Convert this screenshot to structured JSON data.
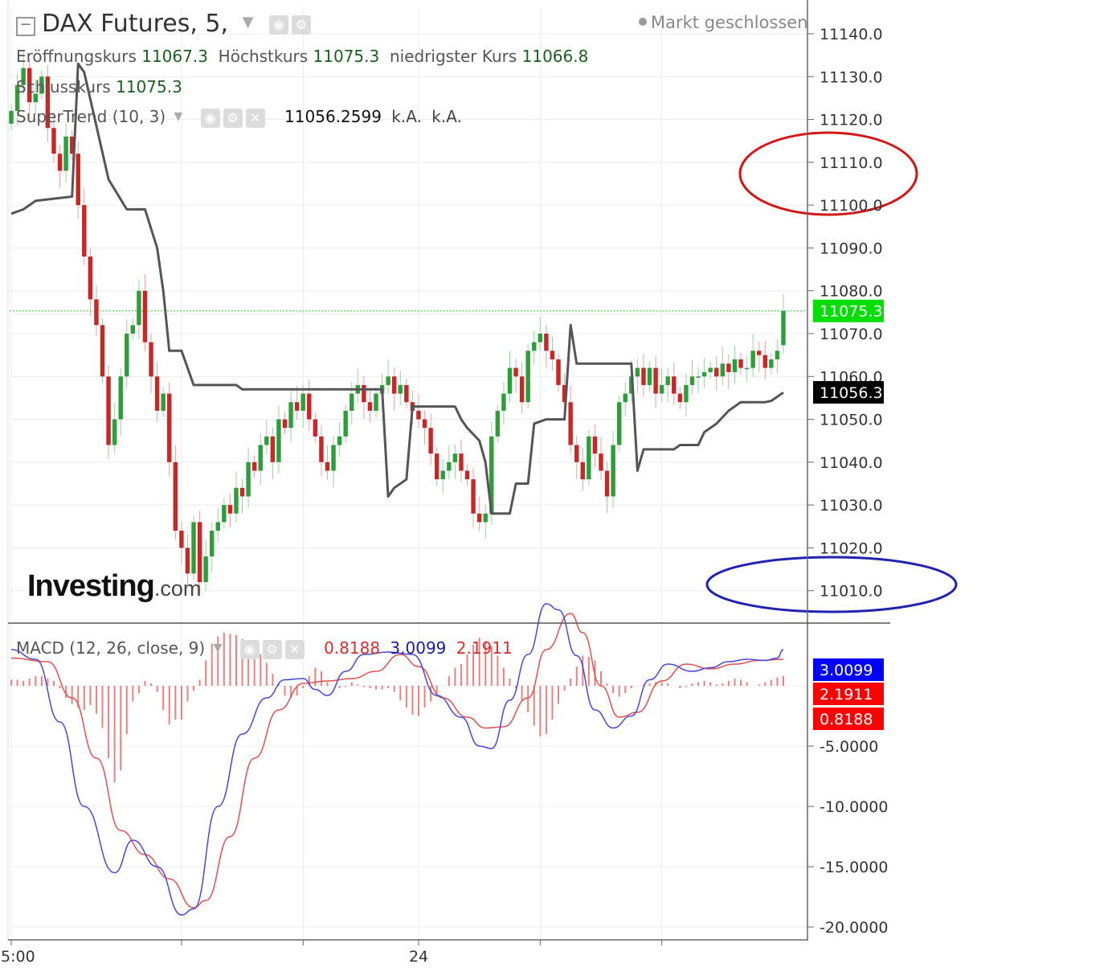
{
  "header": {
    "symbol_title": "DAX Futures, 5,",
    "market_status": "Markt geschlossen",
    "ohlc": [
      {
        "label": "Eröffnungskurs",
        "value": "11067.3"
      },
      {
        "label": "Höchstkurs",
        "value": "11075.3"
      },
      {
        "label": "niedrigster Kurs",
        "value": "11066.8"
      },
      {
        "label": "Schlusskurs",
        "value": "11075.3"
      }
    ],
    "supertrend": {
      "label": "SuperTrend (10, 3)",
      "value": "11056.2599",
      "extra1": "k.A.",
      "extra2": "k.A."
    },
    "macd": {
      "label": "MACD (12, 26, close, 9)",
      "histogram": "0.8188",
      "macd": "3.0099",
      "signal": "2.1911"
    }
  },
  "logo": {
    "main": "Investing",
    "suffix": ".com"
  },
  "colors": {
    "up": "#2e9e3c",
    "down": "#c62828",
    "supertrend": "#555555",
    "macd_line": "#4a46d6",
    "signal_line": "#e05050",
    "histogram": "#ee7f7f",
    "price_tag": "#00dd00",
    "st_tag": "#000000",
    "macd_tag": "#0000ff",
    "signal_tag": "#ff0000"
  },
  "chart_data": [
    {
      "type": "candlestick",
      "title": "DAX Futures, 5,",
      "ylim": [
        11003,
        11146
      ],
      "yticks": [
        "11140.0",
        "11130.0",
        "11120.0",
        "11110.0",
        "11100.0",
        "11090.0",
        "11080.0",
        "11070.0",
        "11060.0",
        "11050.0",
        "11040.0",
        "11030.0",
        "11020.0",
        "11010.0"
      ],
      "last_price": 11075.3,
      "last_price_label": "11075.3",
      "supertrend_last": 11056.3,
      "supertrend_label": "11056.3",
      "candle_closes": [
        11122,
        11128,
        11132,
        11124,
        11126,
        11130,
        11118,
        11112,
        11108,
        11116,
        11112,
        11100,
        11088,
        11078,
        11072,
        11060,
        11044,
        11050,
        11060,
        11070,
        11072,
        11080,
        11068,
        11060,
        11052,
        11056,
        11040,
        11024,
        11020,
        11014,
        11026,
        11012,
        11018,
        11024,
        11026,
        11030,
        11028,
        11034,
        11032,
        11040,
        11038,
        11044,
        11046,
        11040,
        11050,
        11048,
        11054,
        11052,
        11056,
        11050,
        11046,
        11040,
        11038,
        11044,
        11046,
        11052,
        11056,
        11058,
        11054,
        11052,
        11056,
        11058,
        11060,
        11056,
        11058,
        11054,
        11052,
        11050,
        11048,
        11042,
        11036,
        11038,
        11040,
        11042,
        11038,
        11036,
        11028,
        11026,
        11028,
        11046,
        11052,
        11056,
        11062,
        11060,
        11054,
        11066,
        11068,
        11070,
        11066,
        11064,
        11058,
        11054,
        11044,
        11040,
        11036,
        11046,
        11042,
        11038,
        11032,
        11044,
        11054,
        11056,
        11060,
        11062,
        11058,
        11062,
        11056,
        11058,
        11060,
        11056,
        11054,
        11058,
        11060,
        11060,
        11061,
        11062,
        11060,
        11063,
        11061,
        11064,
        11062,
        11062,
        11066,
        11065,
        11062,
        11064,
        11066,
        11075.3
      ],
      "supertrend": [
        {
          "i": 0,
          "v": 11098
        },
        {
          "i": 2,
          "v": 11099
        },
        {
          "i": 4,
          "v": 11101
        },
        {
          "i": 10,
          "v": 11102
        },
        {
          "i": 11,
          "v": 11133
        },
        {
          "i": 12,
          "v": 11131
        },
        {
          "i": 16,
          "v": 11106
        },
        {
          "i": 19,
          "v": 11099
        },
        {
          "i": 22,
          "v": 11099
        },
        {
          "i": 24,
          "v": 11090
        },
        {
          "i": 25,
          "v": 11080
        },
        {
          "i": 26,
          "v": 11066
        },
        {
          "i": 28,
          "v": 11066
        },
        {
          "i": 30,
          "v": 11058
        },
        {
          "i": 37,
          "v": 11058
        },
        {
          "i": 38,
          "v": 11057
        },
        {
          "i": 61,
          "v": 11057
        },
        {
          "i": 62,
          "v": 11032
        },
        {
          "i": 63,
          "v": 11034
        },
        {
          "i": 65,
          "v": 11036
        },
        {
          "i": 66,
          "v": 11053
        },
        {
          "i": 73,
          "v": 11053
        },
        {
          "i": 74,
          "v": 11050
        },
        {
          "i": 75,
          "v": 11048
        },
        {
          "i": 77,
          "v": 11045
        },
        {
          "i": 78,
          "v": 11040
        },
        {
          "i": 79,
          "v": 11028
        },
        {
          "i": 82,
          "v": 11028
        },
        {
          "i": 83,
          "v": 11035
        },
        {
          "i": 85,
          "v": 11035
        },
        {
          "i": 86,
          "v": 11049
        },
        {
          "i": 88,
          "v": 11050
        },
        {
          "i": 91,
          "v": 11050
        },
        {
          "i": 92,
          "v": 11072
        },
        {
          "i": 93,
          "v": 11063
        },
        {
          "i": 102,
          "v": 11063
        },
        {
          "i": 103,
          "v": 11038
        },
        {
          "i": 104,
          "v": 11043
        },
        {
          "i": 109,
          "v": 11043
        },
        {
          "i": 110,
          "v": 11044
        },
        {
          "i": 113,
          "v": 11044
        },
        {
          "i": 114,
          "v": 11047
        },
        {
          "i": 116,
          "v": 11049
        },
        {
          "i": 118,
          "v": 11052
        },
        {
          "i": 120,
          "v": 11054
        },
        {
          "i": 124,
          "v": 11054
        },
        {
          "i": 125,
          "v": 11054.3
        },
        {
          "i": 127,
          "v": 11056.26
        }
      ]
    },
    {
      "type": "line",
      "title": "MACD (12, 26, close, 9)",
      "ylim": [
        -21,
        5
      ],
      "yticks": [
        "-5.0000",
        "-10.0000",
        "-15.0000",
        "-20.0000"
      ],
      "last_values": {
        "macd": "3.0099",
        "signal": "2.1911",
        "histogram": "0.8188"
      },
      "macd": [
        {
          "i": 0,
          "v": 3
        },
        {
          "i": 4,
          "v": 2.2
        },
        {
          "i": 8,
          "v": -3
        },
        {
          "i": 12,
          "v": -10
        },
        {
          "i": 17,
          "v": -15.5
        },
        {
          "i": 20,
          "v": -12.8
        },
        {
          "i": 24,
          "v": -15
        },
        {
          "i": 28,
          "v": -19
        },
        {
          "i": 30,
          "v": -18.5
        },
        {
          "i": 34,
          "v": -10
        },
        {
          "i": 38,
          "v": -4
        },
        {
          "i": 42,
          "v": -1
        },
        {
          "i": 45,
          "v": 0.5
        },
        {
          "i": 48,
          "v": 0.6
        },
        {
          "i": 50,
          "v": -0.3
        },
        {
          "i": 52,
          "v": -0.8
        },
        {
          "i": 55,
          "v": 1.2
        },
        {
          "i": 58,
          "v": 2.6
        },
        {
          "i": 62,
          "v": 2.8
        },
        {
          "i": 66,
          "v": 2.6
        },
        {
          "i": 70,
          "v": -0.8
        },
        {
          "i": 74,
          "v": -2.6
        },
        {
          "i": 77,
          "v": -5
        },
        {
          "i": 79,
          "v": -5.2
        },
        {
          "i": 82,
          "v": -1.2
        },
        {
          "i": 85,
          "v": 2.6
        },
        {
          "i": 88,
          "v": 6.8
        },
        {
          "i": 90,
          "v": 6.3
        },
        {
          "i": 93,
          "v": 2.5
        },
        {
          "i": 96,
          "v": -2
        },
        {
          "i": 99,
          "v": -3.5
        },
        {
          "i": 102,
          "v": -2.5
        },
        {
          "i": 105,
          "v": 0.5
        },
        {
          "i": 108,
          "v": 1.8
        },
        {
          "i": 112,
          "v": 1.2
        },
        {
          "i": 115,
          "v": 1.5
        },
        {
          "i": 118,
          "v": 2
        },
        {
          "i": 121,
          "v": 2.2
        },
        {
          "i": 124,
          "v": 2.1
        },
        {
          "i": 126,
          "v": 2.3
        },
        {
          "i": 127,
          "v": 3.0099
        }
      ],
      "signal": [
        {
          "i": 0,
          "v": 2.3
        },
        {
          "i": 6,
          "v": 2
        },
        {
          "i": 10,
          "v": -1
        },
        {
          "i": 14,
          "v": -6
        },
        {
          "i": 18,
          "v": -12
        },
        {
          "i": 22,
          "v": -14
        },
        {
          "i": 26,
          "v": -16
        },
        {
          "i": 30,
          "v": -18.4
        },
        {
          "i": 32,
          "v": -17.8
        },
        {
          "i": 36,
          "v": -12.5
        },
        {
          "i": 40,
          "v": -6
        },
        {
          "i": 44,
          "v": -2
        },
        {
          "i": 48,
          "v": 0.2
        },
        {
          "i": 52,
          "v": 0.4
        },
        {
          "i": 56,
          "v": 0.6
        },
        {
          "i": 60,
          "v": 1.2
        },
        {
          "i": 64,
          "v": 2.6
        },
        {
          "i": 67,
          "v": 1.6
        },
        {
          "i": 71,
          "v": -1
        },
        {
          "i": 75,
          "v": -2.6
        },
        {
          "i": 78,
          "v": -3.5
        },
        {
          "i": 81,
          "v": -3.4
        },
        {
          "i": 85,
          "v": -1
        },
        {
          "i": 88,
          "v": 3
        },
        {
          "i": 92,
          "v": 6
        },
        {
          "i": 94,
          "v": 4.4
        },
        {
          "i": 97,
          "v": 0
        },
        {
          "i": 100,
          "v": -2.6
        },
        {
          "i": 103,
          "v": -2.2
        },
        {
          "i": 107,
          "v": 0.4
        },
        {
          "i": 111,
          "v": 1.8
        },
        {
          "i": 115,
          "v": 1.4
        },
        {
          "i": 119,
          "v": 1.8
        },
        {
          "i": 123,
          "v": 2.1
        },
        {
          "i": 127,
          "v": 2.1911
        }
      ],
      "histogram": [
        0.5,
        0.5,
        0.4,
        0.6,
        0.8,
        0.8,
        0.6,
        0.4,
        -0.2,
        -1,
        -1.5,
        -1.8,
        -2,
        -1.6,
        -2.3,
        -3.5,
        -6,
        -8,
        -7,
        -4,
        -1.3,
        -0.6,
        0.4,
        0.2,
        -0.5,
        -2,
        -3.2,
        -2.8,
        -2.8,
        -1.3,
        -0.4,
        0.5,
        2.1,
        3.5,
        4.1,
        4.4,
        4.3,
        4.2,
        3.9,
        3.7,
        3.3,
        2.6,
        1.9,
        1,
        0.1,
        -0.8,
        -1,
        -0.8,
        -0.2,
        0.8,
        1.5,
        1.2,
        0.3,
        0,
        -0.2,
        -0.1,
        0.3,
        0.1,
        -0.1,
        -0.2,
        -0.3,
        -0.3,
        -0.2,
        -0.5,
        -1.2,
        -1.8,
        -2.4,
        -2.5,
        -1.8,
        -1.3,
        -0.9,
        0,
        0.8,
        1.5,
        1.8,
        2.6,
        3.4,
        4,
        3.7,
        3.3,
        2.5,
        1.5,
        0.6,
        -0.2,
        -1.2,
        -2.2,
        -3.3,
        -4.2,
        -4,
        -2.8,
        -1.5,
        -0.4,
        0.6,
        1.6,
        2.5,
        2.4,
        2.1,
        1.2,
        0.2,
        -0.6,
        -0.9,
        -0.6,
        -0.2,
        0,
        0.1,
        0.2,
        0.3,
        0.3,
        0.2,
        0,
        -0.2,
        -0.1,
        0.2,
        0.3,
        0.4,
        0.3,
        0.1,
        0.2,
        0.4,
        0.6,
        0.5,
        0.3,
        0,
        0.1,
        0.3,
        0.5,
        0.7,
        0.8188
      ]
    }
  ],
  "x_axis": {
    "labels": [
      {
        "text": "5:00",
        "i": 0
      },
      {
        "text": "24",
        "i": 67
      }
    ]
  }
}
